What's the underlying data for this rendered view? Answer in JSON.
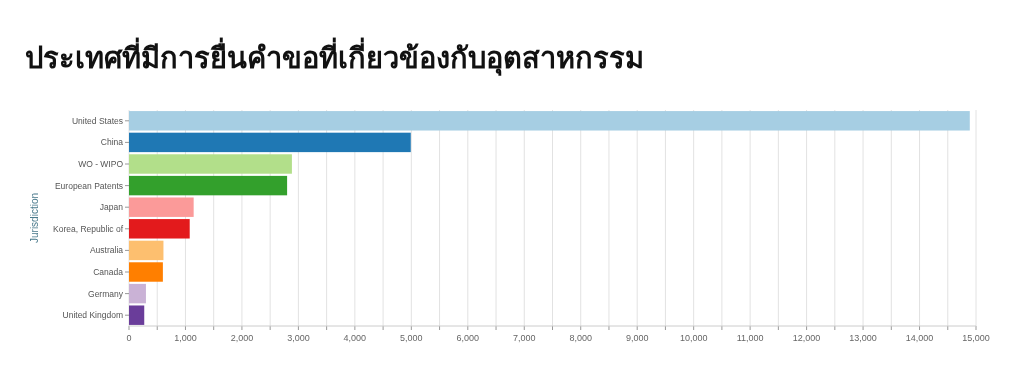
{
  "chart_data": {
    "type": "bar",
    "orientation": "horizontal",
    "title": "ประเทศที่มีการยื่นคำขอที่เกี่ยวข้องกับอุตสาหกรรม",
    "ylabel": "Jurisdiction",
    "categories": [
      "United States",
      "China",
      "WO - WIPO",
      "European Patents",
      "Japan",
      "Korea, Republic of",
      "Australia",
      "Canada",
      "Germany",
      "United Kingdom"
    ],
    "values": [
      14890,
      4990,
      2885,
      2800,
      1145,
      1075,
      610,
      600,
      300,
      270
    ],
    "colors": [
      "#a6cee3",
      "#1f78b4",
      "#b2df8a",
      "#33a02c",
      "#fb9a99",
      "#e31a1c",
      "#fdbf6f",
      "#ff7f00",
      "#cab2d6",
      "#6a3d9a"
    ],
    "xlim": [
      0,
      15000
    ],
    "xticks": [
      0,
      {
        "value": 500,
        "label": null
      },
      {
        "value": 1000,
        "label": "1,000"
      },
      {
        "value": 1500,
        "label": null
      },
      {
        "value": 2000,
        "label": "2,000"
      },
      {
        "value": 2500,
        "label": null
      },
      {
        "value": 3000,
        "label": "3,000"
      },
      {
        "value": 3500,
        "label": null
      },
      {
        "value": 4000,
        "label": "4,000"
      },
      {
        "value": 4500,
        "label": null
      },
      {
        "value": 5000,
        "label": "5,000"
      },
      {
        "value": 5500,
        "label": null
      },
      {
        "value": 6000,
        "label": "6,000"
      },
      {
        "value": 6500,
        "label": null
      },
      {
        "value": 7000,
        "label": "7,000"
      },
      {
        "value": 7500,
        "label": null
      },
      {
        "value": 8000,
        "label": "8,000"
      },
      {
        "value": 8500,
        "label": null
      },
      {
        "value": 9000,
        "label": "9,000"
      },
      {
        "value": 9500,
        "label": null
      },
      {
        "value": 10000,
        "label": "10,000"
      },
      {
        "value": 10500,
        "label": null
      },
      {
        "value": 11000,
        "label": "11,000"
      },
      {
        "value": 11500,
        "label": null
      },
      {
        "value": 12000,
        "label": "12,000"
      },
      {
        "value": 12500,
        "label": null
      },
      {
        "value": 13000,
        "label": "13,000"
      },
      {
        "value": 13500,
        "label": null
      },
      {
        "value": 14000,
        "label": "14,000"
      },
      {
        "value": 14500,
        "label": null
      },
      {
        "value": 15000,
        "label": "15,000"
      }
    ],
    "grid": "x"
  }
}
